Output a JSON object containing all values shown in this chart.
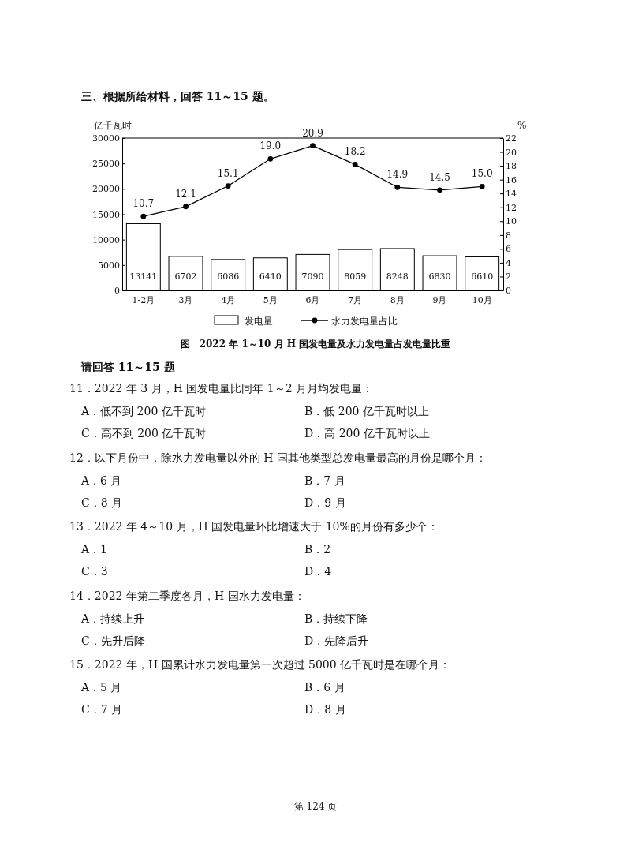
{
  "chart_data": {
    "type": "bar",
    "title": "图　2022 年 1～10 月 H 国发电量及水力发电量占发电量比重",
    "subtitle": "三、根据所给材料，回答 11～15 题。",
    "ylabel": "亿千瓦时",
    "y2label": "%",
    "categories": [
      "1-2月",
      "3月",
      "4月",
      "5月",
      "6月",
      "7月",
      "8月",
      "9月",
      "10月"
    ],
    "series": [
      {
        "name": "发电量",
        "color": "#ffffff",
        "values": [
          13141,
          6702,
          6086,
          6410,
          7090,
          8059,
          8248,
          6830,
          6610
        ],
        "value_labels": [
          "13141",
          "6702",
          "6086",
          "6410",
          "7090",
          "8059",
          "8248",
          "6830",
          "6610"
        ]
      },
      {
        "name": "水力发电量占比",
        "type": "line",
        "axis": "y2",
        "color": "#000000",
        "values": [
          10.7,
          12.1,
          15.1,
          19.0,
          20.9,
          18.2,
          14.9,
          14.5,
          15.0
        ],
        "value_labels": [
          "10.7",
          "12.1",
          "15.1",
          "19.0",
          "20.9",
          "18.2",
          "14.9",
          "14.5",
          "15.0"
        ]
      }
    ],
    "ylim": [
      0,
      30000
    ],
    "yticks": [
      0,
      5000,
      10000,
      15000,
      20000,
      25000,
      30000
    ],
    "y2lim": [
      0,
      22
    ],
    "y2ticks": [
      0,
      2,
      4,
      6,
      8,
      10,
      12,
      14,
      16,
      18,
      20,
      22
    ],
    "legend": "bottom",
    "marker": "circle",
    "grid": false,
    "annotations": [
      "请回答 11～15 题",
      "11．2022 年 3 月，H 国发电量比同年 1～2 月月均发电量：",
      "A．低不到 200 亿千瓦时",
      "B．低 200 亿千瓦时以上",
      "C．高不到 200 亿千瓦时",
      "D．高 200 亿千瓦时以上",
      "12．以下月份中，除水力发电量以外的 H 国其他类型总发电量最高的月份是哪个月：",
      "A．6 月",
      "B．7 月",
      "C．8 月",
      "D．9 月",
      "13．2022 年 4～10 月，H 国发电量环比增速大于 10%的月份有多少个：",
      "A．1",
      "B．2",
      "C．3",
      "D．4",
      "14．2022 年第二季度各月，H 国水力发电量：",
      "A．持续上升",
      "B．持续下降",
      "C．先升后降",
      "D．先降后升",
      "15．2022 年，H 国累计水力发电量第一次超过 5000 亿千瓦时是在哪个月：",
      "A．5 月",
      "B．6 月",
      "C．7 月",
      "D．8 月",
      "第 124 页"
    ]
  }
}
